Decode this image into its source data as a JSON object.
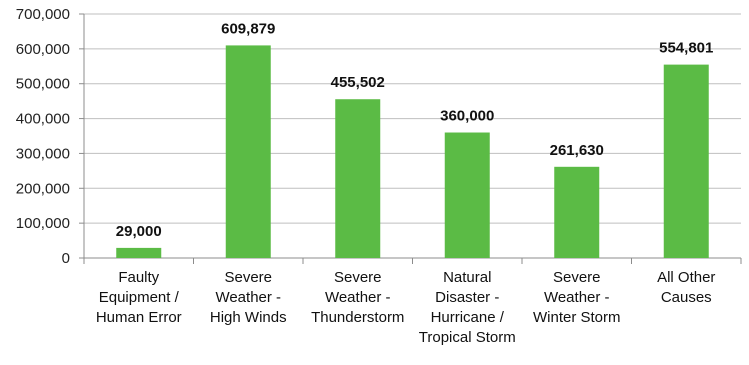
{
  "chart_data": {
    "type": "bar",
    "title": "",
    "xlabel": "",
    "ylabel": "",
    "ylim": [
      0,
      700000
    ],
    "yticks": [
      0,
      100000,
      200000,
      300000,
      400000,
      500000,
      600000,
      700000
    ],
    "ytick_labels": [
      "0",
      "100,000",
      "200,000",
      "300,000",
      "400,000",
      "500,000",
      "600,000",
      "700,000"
    ],
    "grid": true,
    "legend": "none",
    "bar_color": "#5bbb45",
    "categories": [
      [
        "Faulty",
        "Equipment /",
        "Human Error"
      ],
      [
        "Severe",
        "Weather -",
        "High Winds"
      ],
      [
        "Severe",
        "Weather -",
        "Thunderstorm"
      ],
      [
        "Natural",
        "Disaster -",
        "Hurricane /",
        "Tropical Storm"
      ],
      [
        "Severe",
        "Weather -",
        "Winter Storm"
      ],
      [
        "All Other",
        "Causes"
      ]
    ],
    "values": [
      29000,
      609879,
      455502,
      360000,
      261630,
      554801
    ],
    "data_labels": [
      "29,000",
      "609,879",
      "455,502",
      "360,000",
      "261,630",
      "554,801"
    ]
  }
}
